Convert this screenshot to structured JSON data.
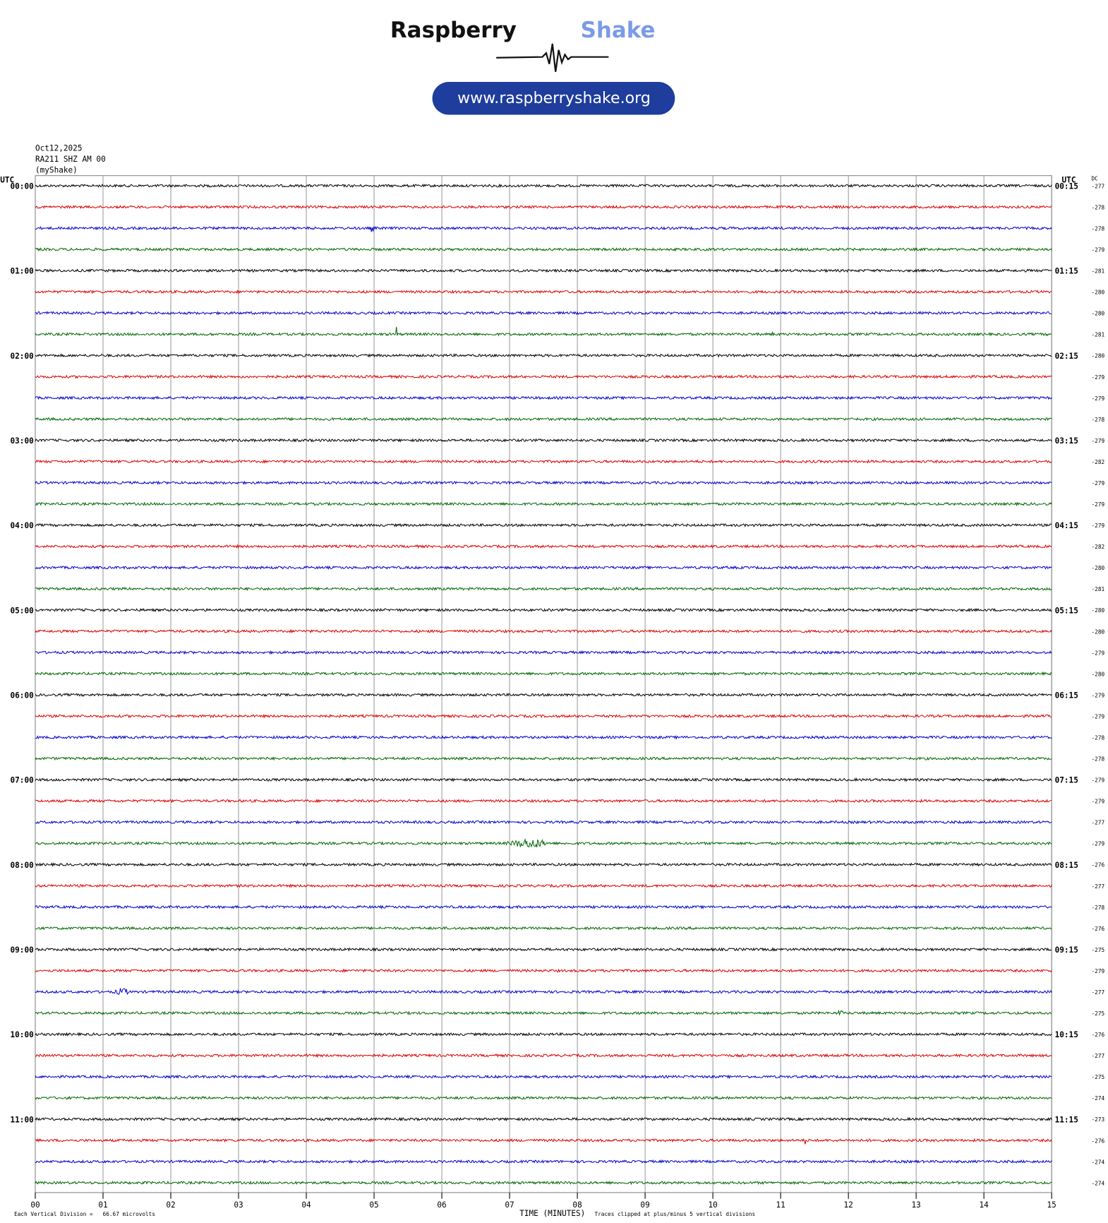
{
  "chart_data": {
    "type": "helicorder",
    "brand": "Raspberry",
    "brand_accent": "Shake",
    "website": "www.raspberryshake.org",
    "date": "Oct12,2025",
    "station": "RA211 SHZ AM 00",
    "source": "(myShake)",
    "left_axis_label": "UTC",
    "right_axis_label": "UTC",
    "dc_label": "DC",
    "row_labels": [
      "00:00",
      "01:00",
      "02:00",
      "03:00",
      "04:00",
      "05:00",
      "06:00",
      "07:00",
      "08:00",
      "09:00",
      "10:00",
      "11:00"
    ],
    "right_labels": [
      "00:15",
      "01:15",
      "02:15",
      "03:15",
      "04:15",
      "05:15",
      "06:15",
      "07:15",
      "08:15",
      "09:15",
      "10:15",
      "11:15"
    ],
    "dc": [
      -277,
      -278,
      -278,
      -279,
      -281,
      -280,
      -280,
      -281,
      -280,
      -279,
      -279,
      -278,
      -279,
      -282,
      -279,
      -279,
      -279,
      -282,
      -280,
      -281,
      -280,
      -280,
      -279,
      -280,
      -279,
      -279,
      -278,
      -278,
      -279,
      -279,
      -277,
      -279,
      -276,
      -277,
      -278,
      -276,
      -275,
      -279,
      -277,
      -275,
      -276,
      -277,
      -275,
      -274,
      -273,
      -276,
      -274,
      -274
    ],
    "trace_colors": [
      "#000000",
      "#dd0000",
      "#0000cc",
      "#006600"
    ],
    "xlim": [
      0,
      15
    ],
    "xticks": [
      {
        "value": 0,
        "label": "00"
      },
      {
        "value": 1,
        "label": "01"
      },
      {
        "value": 2,
        "label": "02"
      },
      {
        "value": 3,
        "label": "03"
      },
      {
        "value": 4,
        "label": "04"
      },
      {
        "value": 5,
        "label": "05"
      },
      {
        "value": 6,
        "label": "06"
      },
      {
        "value": 7,
        "label": "07"
      },
      {
        "value": 8,
        "label": "08"
      },
      {
        "value": 9,
        "label": "09"
      },
      {
        "value": 10,
        "label": "10"
      },
      11,
      12,
      13,
      14,
      15
    ],
    "x_label": "TIME (MINUTES)",
    "scale_note": "Each Vertical Division =   66.67 microvolts",
    "clip_note": "Traces clipped at plus/minus 5 vertical divisions"
  }
}
